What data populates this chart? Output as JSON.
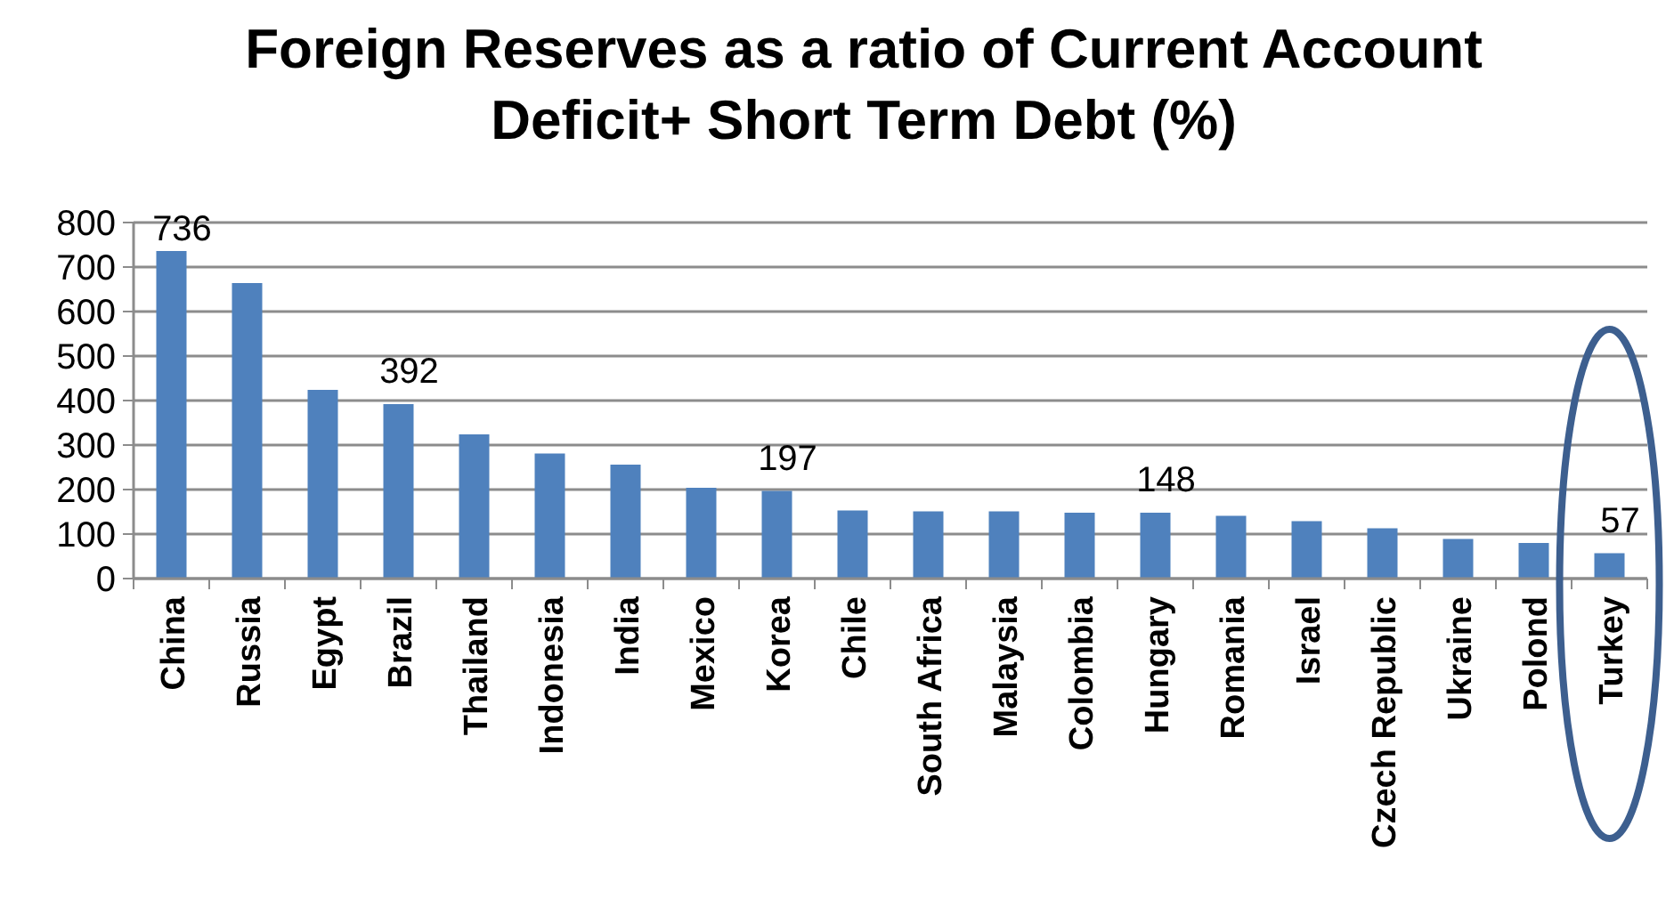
{
  "chart_data": {
    "type": "bar",
    "title": "Foreign Reserves as a ratio of Current Account Deficit+ Short Term Debt (%)",
    "categories": [
      "China",
      "Russia",
      "Egypt",
      "Brazil",
      "Thailand",
      "Indonesia",
      "India",
      "Mexico",
      "Korea",
      "Chile",
      "South Africa",
      "Malaysia",
      "Colombia",
      "Hungary",
      "Romania",
      "Israel",
      "Czech Republic",
      "Ukraine",
      "Polond",
      "Turkey"
    ],
    "values": [
      736,
      664,
      424,
      392,
      324,
      281,
      256,
      204,
      197,
      153,
      151,
      151,
      148,
      148,
      141,
      129,
      113,
      89,
      80,
      57
    ],
    "value_labels": [
      "736",
      null,
      null,
      "392",
      null,
      null,
      null,
      null,
      "197",
      null,
      null,
      null,
      null,
      "148",
      null,
      null,
      null,
      null,
      null,
      "57"
    ],
    "color": "#4f81bd",
    "ylim": [
      0,
      800
    ],
    "yticks": [
      0,
      100,
      200,
      300,
      400,
      500,
      600,
      700,
      800
    ],
    "grid": "y"
  }
}
